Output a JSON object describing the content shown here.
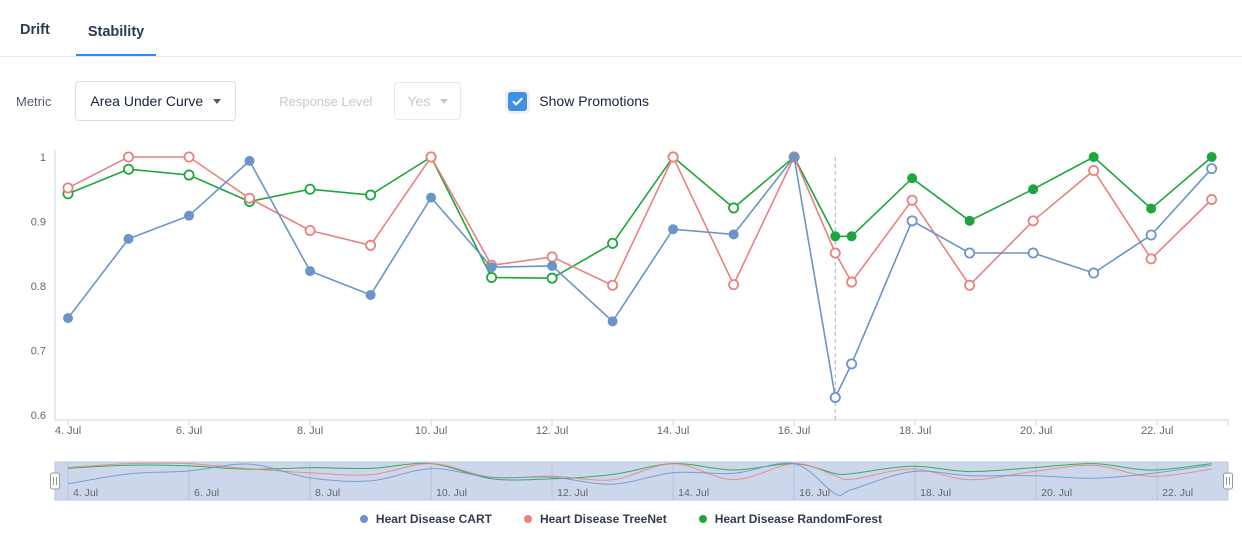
{
  "tabs": {
    "items": [
      {
        "label": "Drift",
        "active": false
      },
      {
        "label": "Stability",
        "active": true
      }
    ]
  },
  "controls": {
    "metric_label": "Metric",
    "metric_value": "Area Under Curve",
    "response_level_label": "Response Level",
    "response_level_value": "Yes",
    "response_level_disabled": true,
    "show_promotions_label": "Show Promotions",
    "show_promotions_checked": true
  },
  "colors": {
    "accent": "#2d8cf0",
    "checkbox": "#4090e2",
    "axis": "#ccd6eb",
    "tick_label": "#666666",
    "promotion_line": "#b3b3b3",
    "nav_bg": "#ccd7ec",
    "nav_grid": "#b7c3de",
    "nav_outline": "#bac4da",
    "nav_handle": "#999999"
  },
  "chart_data": {
    "type": "line",
    "title": "",
    "xlabel": "",
    "ylabel": "",
    "x_unit": "date (day of July)",
    "xlim": [
      3.785,
      23.17
    ],
    "ylim": [
      0.592,
      1.0
    ],
    "y_ticks": [
      {
        "v": 1,
        "label": "1"
      },
      {
        "v": 0.9,
        "label": "0.9"
      },
      {
        "v": 0.8,
        "label": "0.8"
      },
      {
        "v": 0.7,
        "label": "0.7"
      },
      {
        "v": 0.6,
        "label": "0.6"
      }
    ],
    "x_ticks": [
      {
        "v": 4,
        "label": "4. Jul"
      },
      {
        "v": 6,
        "label": "6. Jul"
      },
      {
        "v": 8,
        "label": "8. Jul"
      },
      {
        "v": 10,
        "label": "10. Jul"
      },
      {
        "v": 12,
        "label": "12. Jul"
      },
      {
        "v": 14,
        "label": "14. Jul"
      },
      {
        "v": 16,
        "label": "16. Jul"
      },
      {
        "v": 18,
        "label": "18. Jul"
      },
      {
        "v": 20,
        "label": "20. Jul"
      },
      {
        "v": 22,
        "label": "22. Jul"
      }
    ],
    "grid": false,
    "legend_position": "bottom-center",
    "promotion_line_x": 16.68,
    "navigator": {
      "visible": true,
      "range": "full",
      "ylim": [
        0.55,
        1.02
      ]
    },
    "point_format": "[x_day, value, marker_filled]",
    "series": [
      {
        "name": "Heart Disease CART",
        "color": "#6b94c9",
        "points": [
          [
            4,
            0.75,
            1
          ],
          [
            5,
            0.873,
            1
          ],
          [
            6,
            0.909,
            1
          ],
          [
            7,
            0.994,
            1
          ],
          [
            8,
            0.823,
            1
          ],
          [
            9,
            0.786,
            1
          ],
          [
            10,
            0.937,
            1
          ],
          [
            11,
            0.829,
            1
          ],
          [
            12,
            0.831,
            1
          ],
          [
            13,
            0.745,
            1
          ],
          [
            14,
            0.888,
            1
          ],
          [
            15,
            0.88,
            1
          ],
          [
            16,
            1,
            1
          ],
          [
            16.68,
            0.627,
            0
          ],
          [
            16.95,
            0.679,
            0
          ],
          [
            17.95,
            0.901,
            0
          ],
          [
            18.9,
            0.851,
            0
          ],
          [
            19.95,
            0.851,
            0
          ],
          [
            20.95,
            0.82,
            0
          ],
          [
            21.9,
            0.879,
            0
          ],
          [
            22.9,
            0.982,
            0
          ]
        ]
      },
      {
        "name": "Heart Disease TreeNet",
        "color": "#e8827f",
        "points": [
          [
            4,
            0.952,
            0
          ],
          [
            5,
            1,
            0
          ],
          [
            6,
            1,
            0
          ],
          [
            7,
            0.936,
            0
          ],
          [
            8,
            0.886,
            0
          ],
          [
            9,
            0.863,
            0
          ],
          [
            10,
            1,
            0
          ],
          [
            11,
            0.832,
            0
          ],
          [
            12,
            0.845,
            0
          ],
          [
            13,
            0.801,
            0
          ],
          [
            14,
            1,
            0
          ],
          [
            15,
            0.802,
            0
          ],
          [
            16,
            1,
            0
          ],
          [
            16.68,
            0.851,
            0
          ],
          [
            16.95,
            0.806,
            0
          ],
          [
            17.95,
            0.933,
            0
          ],
          [
            18.9,
            0.801,
            0
          ],
          [
            19.95,
            0.901,
            0
          ],
          [
            20.95,
            0.979,
            0
          ],
          [
            21.9,
            0.842,
            0
          ],
          [
            22.9,
            0.934,
            0
          ]
        ]
      },
      {
        "name": "Heart Disease RandomForest",
        "color": "#1ea63c",
        "points": [
          [
            4,
            0.943,
            0
          ],
          [
            5,
            0.981,
            0
          ],
          [
            6,
            0.972,
            0
          ],
          [
            7,
            0.931,
            0
          ],
          [
            8,
            0.95,
            0
          ],
          [
            9,
            0.941,
            0
          ],
          [
            10,
            1,
            0
          ],
          [
            11,
            0.813,
            0
          ],
          [
            12,
            0.812,
            0
          ],
          [
            13,
            0.866,
            0
          ],
          [
            14,
            1,
            0
          ],
          [
            15,
            0.921,
            0
          ],
          [
            16,
            1,
            0
          ],
          [
            16.68,
            0.877,
            1
          ],
          [
            16.95,
            0.877,
            1
          ],
          [
            17.95,
            0.967,
            1
          ],
          [
            18.9,
            0.901,
            1
          ],
          [
            19.95,
            0.95,
            1
          ],
          [
            20.95,
            1,
            1
          ],
          [
            21.9,
            0.92,
            1
          ],
          [
            22.9,
            1,
            1
          ]
        ]
      }
    ]
  }
}
